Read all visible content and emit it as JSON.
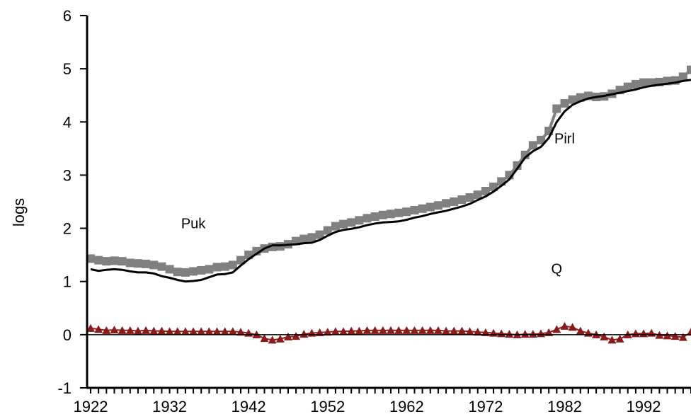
{
  "chart_data": {
    "type": "line",
    "ylabel": "logs",
    "xlim": [
      1922,
      1998
    ],
    "ylim": [
      -1,
      6
    ],
    "y_ticks": [
      "-1",
      "0",
      "1",
      "2",
      "3",
      "4",
      "5",
      "6"
    ],
    "x_tick_labels": [
      "1922",
      "1932",
      "1942",
      "1952",
      "1962",
      "1972",
      "1982",
      "1992"
    ],
    "x_label_years": [
      1922,
      1932,
      1942,
      1952,
      1962,
      1972,
      1982,
      1992
    ],
    "zero_line": true,
    "annotations": [
      {
        "text": "Puk",
        "x": 1935,
        "y": 2.0
      },
      {
        "text": "Pirl",
        "x": 1982,
        "y": 3.6
      },
      {
        "text": "Q",
        "x": 1981,
        "y": 1.15
      }
    ],
    "colors": {
      "pirl": "#808080",
      "puk": "#000000",
      "q": "#8b1a1a",
      "axis": "#000000"
    },
    "years": [
      1922,
      1923,
      1924,
      1925,
      1926,
      1927,
      1928,
      1929,
      1930,
      1931,
      1932,
      1933,
      1934,
      1935,
      1936,
      1937,
      1938,
      1939,
      1940,
      1941,
      1942,
      1943,
      1944,
      1945,
      1946,
      1947,
      1948,
      1949,
      1950,
      1951,
      1952,
      1953,
      1954,
      1955,
      1956,
      1957,
      1958,
      1959,
      1960,
      1961,
      1962,
      1963,
      1964,
      1965,
      1966,
      1967,
      1968,
      1969,
      1970,
      1971,
      1972,
      1973,
      1974,
      1975,
      1976,
      1977,
      1978,
      1979,
      1980,
      1981,
      1982,
      1983,
      1984,
      1985,
      1986,
      1987,
      1988,
      1989,
      1990,
      1991,
      1992,
      1993,
      1994,
      1995,
      1996,
      1997,
      1998
    ],
    "series": [
      {
        "key": "pirl",
        "marker": "square",
        "values": [
          1.43,
          1.4,
          1.38,
          1.39,
          1.38,
          1.35,
          1.34,
          1.33,
          1.31,
          1.28,
          1.23,
          1.18,
          1.17,
          1.19,
          1.21,
          1.23,
          1.27,
          1.28,
          1.31,
          1.4,
          1.5,
          1.57,
          1.62,
          1.65,
          1.66,
          1.7,
          1.76,
          1.8,
          1.83,
          1.88,
          1.96,
          2.04,
          2.08,
          2.11,
          2.15,
          2.19,
          2.22,
          2.25,
          2.27,
          2.29,
          2.31,
          2.34,
          2.37,
          2.4,
          2.43,
          2.47,
          2.5,
          2.54,
          2.58,
          2.63,
          2.7,
          2.78,
          2.88,
          3.0,
          3.18,
          3.38,
          3.56,
          3.66,
          3.83,
          4.25,
          4.35,
          4.42,
          4.46,
          4.49,
          4.47,
          4.48,
          4.53,
          4.6,
          4.66,
          4.71,
          4.74,
          4.74,
          4.75,
          4.77,
          4.78,
          4.85,
          4.98
        ]
      },
      {
        "key": "puk",
        "marker": "none",
        "values": [
          1.23,
          1.2,
          1.22,
          1.23,
          1.22,
          1.19,
          1.17,
          1.17,
          1.15,
          1.1,
          1.07,
          1.03,
          1.0,
          1.01,
          1.03,
          1.08,
          1.13,
          1.14,
          1.17,
          1.3,
          1.42,
          1.52,
          1.62,
          1.68,
          1.68,
          1.69,
          1.7,
          1.72,
          1.73,
          1.78,
          1.86,
          1.93,
          1.97,
          1.99,
          2.02,
          2.06,
          2.09,
          2.11,
          2.12,
          2.13,
          2.16,
          2.2,
          2.23,
          2.27,
          2.3,
          2.33,
          2.37,
          2.41,
          2.46,
          2.53,
          2.6,
          2.69,
          2.8,
          2.92,
          3.12,
          3.33,
          3.45,
          3.53,
          3.7,
          4.0,
          4.2,
          4.32,
          4.39,
          4.44,
          4.47,
          4.49,
          4.52,
          4.55,
          4.58,
          4.61,
          4.65,
          4.68,
          4.7,
          4.72,
          4.74,
          4.77,
          4.79
        ]
      },
      {
        "key": "q",
        "marker": "triangle",
        "values": [
          0.12,
          0.1,
          0.08,
          0.09,
          0.08,
          0.08,
          0.07,
          0.08,
          0.07,
          0.07,
          0.06,
          0.06,
          0.06,
          0.06,
          0.06,
          0.06,
          0.06,
          0.06,
          0.06,
          0.05,
          0.03,
          0.0,
          -0.07,
          -0.1,
          -0.08,
          -0.04,
          -0.03,
          0.01,
          0.03,
          0.04,
          0.05,
          0.06,
          0.06,
          0.07,
          0.07,
          0.08,
          0.08,
          0.08,
          0.08,
          0.08,
          0.08,
          0.08,
          0.08,
          0.08,
          0.08,
          0.07,
          0.07,
          0.07,
          0.06,
          0.05,
          0.04,
          0.03,
          0.02,
          0.01,
          0.0,
          0.01,
          0.01,
          0.02,
          0.04,
          0.1,
          0.16,
          0.14,
          0.07,
          0.03,
          0.0,
          -0.04,
          -0.1,
          -0.08,
          0.0,
          0.02,
          0.02,
          0.03,
          -0.01,
          -0.02,
          -0.03,
          -0.05,
          0.05
        ]
      }
    ]
  }
}
